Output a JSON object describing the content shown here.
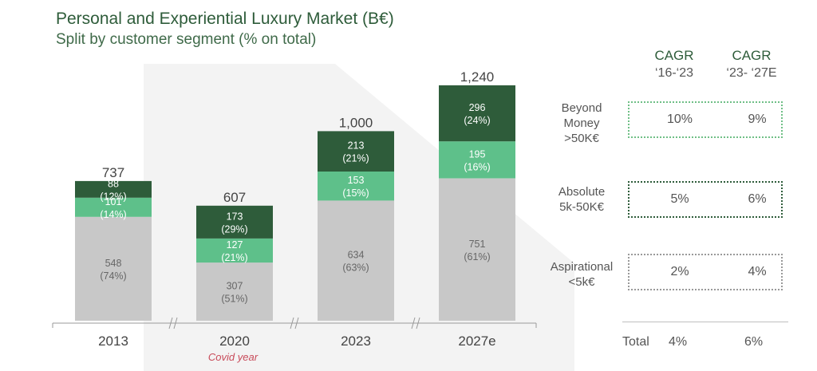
{
  "header": {
    "title": "Personal and Experiential Luxury Market (B€)",
    "subtitle": "Split by customer segment (% on total)"
  },
  "chart_data": {
    "type": "bar",
    "stacked": true,
    "categories": [
      "2013",
      "2020",
      "2023",
      "2027e"
    ],
    "totals": [
      "737",
      "607",
      "1,000",
      "1,240"
    ],
    "series": [
      {
        "name": "Aspirational",
        "values": [
          548,
          307,
          634,
          751
        ],
        "pct_labels": [
          "(74%)",
          "(51%)",
          "(63%)",
          "(61%)"
        ],
        "color": "#c8c8c8",
        "text_color": "#666666"
      },
      {
        "name": "Absolute",
        "values": [
          101,
          127,
          153,
          195
        ],
        "pct_labels": [
          "(14%)",
          "(21%)",
          "(15%)",
          "(16%)"
        ],
        "color": "#5ec08a",
        "text_color": "#ffffff"
      },
      {
        "name": "Beyond Money",
        "values": [
          88,
          173,
          213,
          296
        ],
        "pct_labels": [
          "(12%)",
          "(29%)",
          "(21%)",
          "(24%)"
        ],
        "color": "#2e5c3a",
        "text_color": "#ffffff"
      }
    ],
    "annotations": {
      "2020": "Covid year"
    },
    "axis_breaks_after": [
      "2013",
      "2020",
      "2023"
    ]
  },
  "cagr": {
    "columns": [
      {
        "title": "CAGR",
        "period": "‘16-‘23"
      },
      {
        "title": "CAGR",
        "period": "‘23- ‘27E"
      }
    ],
    "segments": [
      {
        "label_lines": [
          "Beyond",
          "Money",
          ">50K€"
        ],
        "values": [
          "10%",
          "9%"
        ]
      },
      {
        "label_lines": [
          "Absolute",
          "5k-50K€"
        ],
        "values": [
          "5%",
          "6%"
        ]
      },
      {
        "label_lines": [
          "Aspirational",
          "<5k€"
        ],
        "values": [
          "2%",
          "4%"
        ]
      }
    ],
    "total": {
      "label": "Total",
      "values": [
        "4%",
        "6%"
      ]
    }
  },
  "colors": {
    "title": "#2e5c3a",
    "dark_green": "#2e5c3a",
    "light_green": "#5ec08a",
    "grey": "#c8c8c8",
    "covid": "#c84b5a"
  }
}
